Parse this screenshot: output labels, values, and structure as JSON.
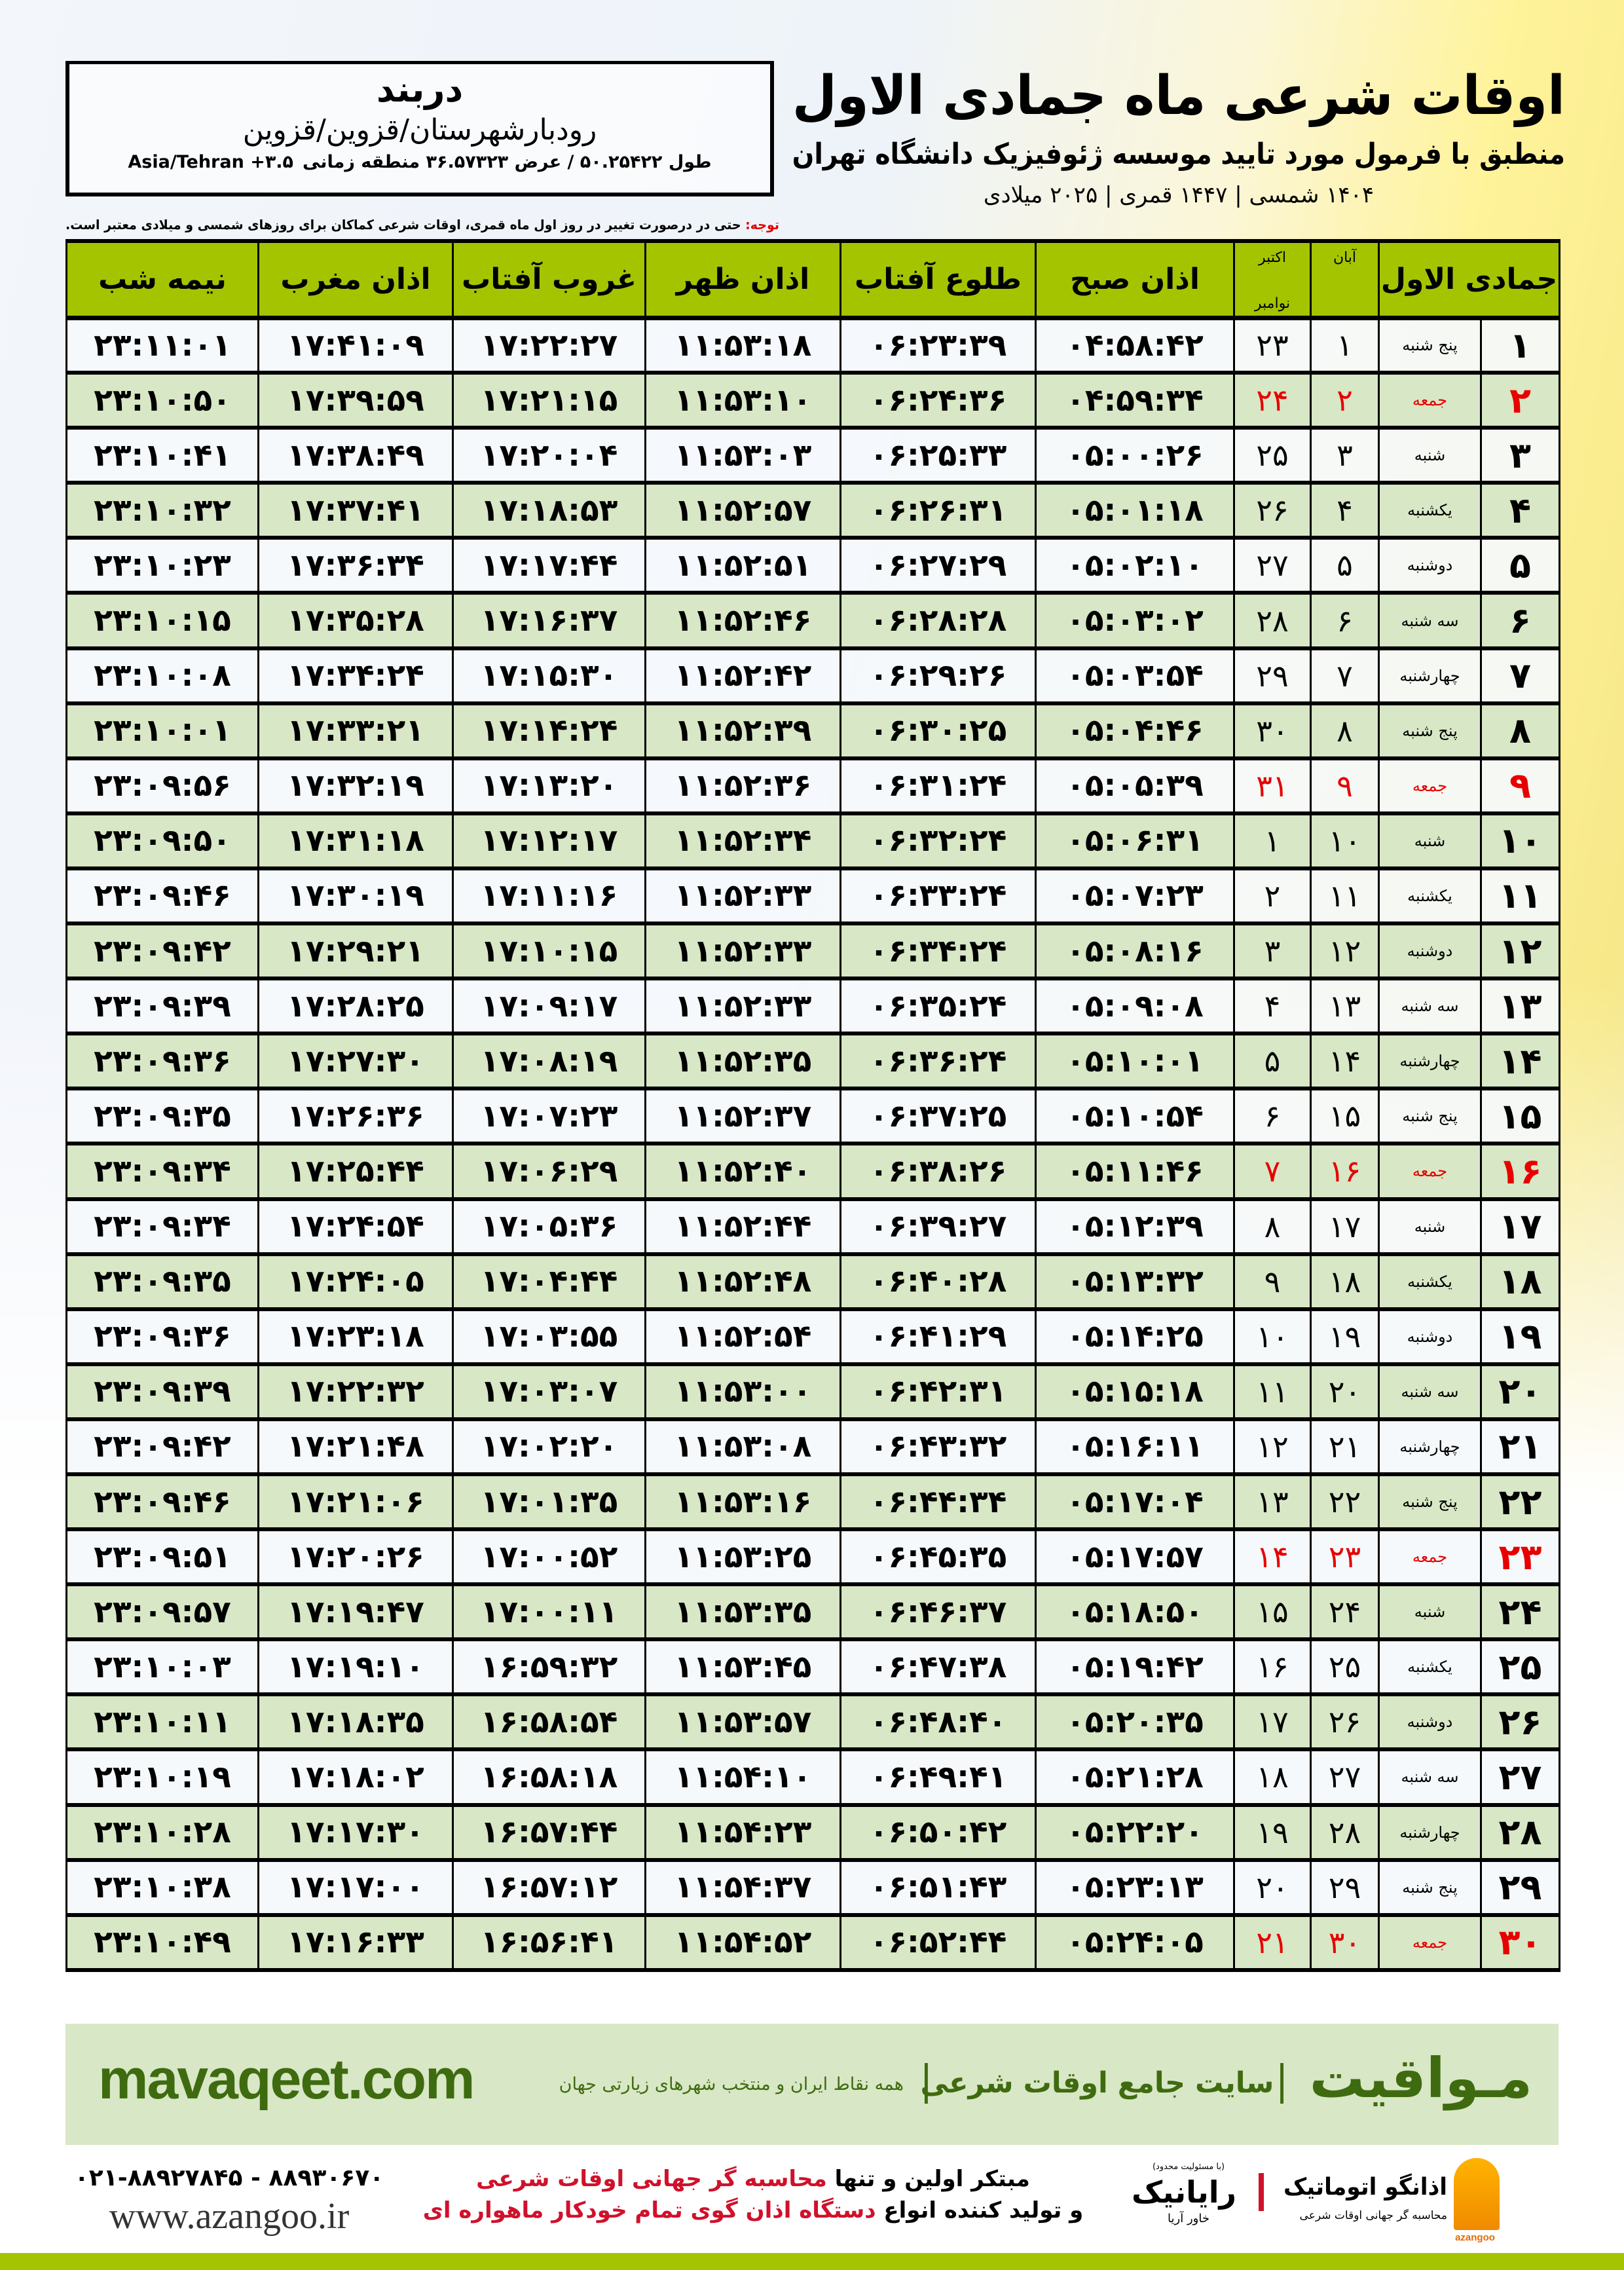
{
  "location": {
    "name": "دربند",
    "region": "رودبارشهرستان/قزوین/قزوین",
    "coords": "طول ۵۰.۲۵۴۲۲ / عرض ۳۶.۵۷۳۲۳ منطقه زمانی",
    "timezone": "Asia/Tehran +۳.۵"
  },
  "header": {
    "title": "اوقات شرعی ماه جمادی الاول",
    "subtitle": "منطبق با فرمول مورد تایید موسسه ژئوفیزیک دانشگاه تهران",
    "dates": "۱۴۰۴ شمسی | ۱۴۴۷ قمری | ۲۰۲۵ میلادی"
  },
  "note": {
    "label": "توجه:",
    "text": " حتی در درصورت تغییر در روز اول ماه قمری، اوقات شرعی کماکان برای روزهای شمسی و میلادی معتبر است."
  },
  "columns": {
    "lunar": "جمادی الاول",
    "aban": "آبان",
    "greg_top": "اکتبر",
    "greg_bottom": "نوامبر",
    "fajr": "اذان صبح",
    "sunrise": "طلوع آفتاب",
    "dhuhr": "اذان ظهر",
    "sunset": "غروب آفتاب",
    "maghrib": "اذان مغرب",
    "midnight": "نیمه شب"
  },
  "colors": {
    "header_bg": "#a5c400",
    "alt_row": "#d8e7c5",
    "friday": "#e60000",
    "brand_green": "#3f6b10"
  },
  "rows": [
    {
      "day": "۱",
      "weekday": "پنج شنبه",
      "aban": "۱",
      "greg": "۲۳",
      "fajr": "۰۴:۵۸:۴۲",
      "sunrise": "۰۶:۲۳:۳۹",
      "dhuhr": "۱۱:۵۳:۱۸",
      "sunset": "۱۷:۲۲:۲۷",
      "maghrib": "۱۷:۴۱:۰۹",
      "midnight": "۲۳:۱۱:۰۱",
      "friday": false
    },
    {
      "day": "۲",
      "weekday": "جمعه",
      "aban": "۲",
      "greg": "۲۴",
      "fajr": "۰۴:۵۹:۳۴",
      "sunrise": "۰۶:۲۴:۳۶",
      "dhuhr": "۱۱:۵۳:۱۰",
      "sunset": "۱۷:۲۱:۱۵",
      "maghrib": "۱۷:۳۹:۵۹",
      "midnight": "۲۳:۱۰:۵۰",
      "friday": true
    },
    {
      "day": "۳",
      "weekday": "شنبه",
      "aban": "۳",
      "greg": "۲۵",
      "fajr": "۰۵:۰۰:۲۶",
      "sunrise": "۰۶:۲۵:۳۳",
      "dhuhr": "۱۱:۵۳:۰۳",
      "sunset": "۱۷:۲۰:۰۴",
      "maghrib": "۱۷:۳۸:۴۹",
      "midnight": "۲۳:۱۰:۴۱",
      "friday": false
    },
    {
      "day": "۴",
      "weekday": "یکشنبه",
      "aban": "۴",
      "greg": "۲۶",
      "fajr": "۰۵:۰۱:۱۸",
      "sunrise": "۰۶:۲۶:۳۱",
      "dhuhr": "۱۱:۵۲:۵۷",
      "sunset": "۱۷:۱۸:۵۳",
      "maghrib": "۱۷:۳۷:۴۱",
      "midnight": "۲۳:۱۰:۳۲",
      "friday": false
    },
    {
      "day": "۵",
      "weekday": "دوشنبه",
      "aban": "۵",
      "greg": "۲۷",
      "fajr": "۰۵:۰۲:۱۰",
      "sunrise": "۰۶:۲۷:۲۹",
      "dhuhr": "۱۱:۵۲:۵۱",
      "sunset": "۱۷:۱۷:۴۴",
      "maghrib": "۱۷:۳۶:۳۴",
      "midnight": "۲۳:۱۰:۲۳",
      "friday": false
    },
    {
      "day": "۶",
      "weekday": "سه شنبه",
      "aban": "۶",
      "greg": "۲۸",
      "fajr": "۰۵:۰۳:۰۲",
      "sunrise": "۰۶:۲۸:۲۸",
      "dhuhr": "۱۱:۵۲:۴۶",
      "sunset": "۱۷:۱۶:۳۷",
      "maghrib": "۱۷:۳۵:۲۸",
      "midnight": "۲۳:۱۰:۱۵",
      "friday": false
    },
    {
      "day": "۷",
      "weekday": "چهارشنبه",
      "aban": "۷",
      "greg": "۲۹",
      "fajr": "۰۵:۰۳:۵۴",
      "sunrise": "۰۶:۲۹:۲۶",
      "dhuhr": "۱۱:۵۲:۴۲",
      "sunset": "۱۷:۱۵:۳۰",
      "maghrib": "۱۷:۳۴:۲۴",
      "midnight": "۲۳:۱۰:۰۸",
      "friday": false
    },
    {
      "day": "۸",
      "weekday": "پنج شنبه",
      "aban": "۸",
      "greg": "۳۰",
      "fajr": "۰۵:۰۴:۴۶",
      "sunrise": "۰۶:۳۰:۲۵",
      "dhuhr": "۱۱:۵۲:۳۹",
      "sunset": "۱۷:۱۴:۲۴",
      "maghrib": "۱۷:۳۳:۲۱",
      "midnight": "۲۳:۱۰:۰۱",
      "friday": false
    },
    {
      "day": "۹",
      "weekday": "جمعه",
      "aban": "۹",
      "greg": "۳۱",
      "fajr": "۰۵:۰۵:۳۹",
      "sunrise": "۰۶:۳۱:۲۴",
      "dhuhr": "۱۱:۵۲:۳۶",
      "sunset": "۱۷:۱۳:۲۰",
      "maghrib": "۱۷:۳۲:۱۹",
      "midnight": "۲۳:۰۹:۵۶",
      "friday": true
    },
    {
      "day": "۱۰",
      "weekday": "شنبه",
      "aban": "۱۰",
      "greg": "۱",
      "fajr": "۰۵:۰۶:۳۱",
      "sunrise": "۰۶:۳۲:۲۴",
      "dhuhr": "۱۱:۵۲:۳۴",
      "sunset": "۱۷:۱۲:۱۷",
      "maghrib": "۱۷:۳۱:۱۸",
      "midnight": "۲۳:۰۹:۵۰",
      "friday": false
    },
    {
      "day": "۱۱",
      "weekday": "یکشنبه",
      "aban": "۱۱",
      "greg": "۲",
      "fajr": "۰۵:۰۷:۲۳",
      "sunrise": "۰۶:۳۳:۲۴",
      "dhuhr": "۱۱:۵۲:۳۳",
      "sunset": "۱۷:۱۱:۱۶",
      "maghrib": "۱۷:۳۰:۱۹",
      "midnight": "۲۳:۰۹:۴۶",
      "friday": false
    },
    {
      "day": "۱۲",
      "weekday": "دوشنبه",
      "aban": "۱۲",
      "greg": "۳",
      "fajr": "۰۵:۰۸:۱۶",
      "sunrise": "۰۶:۳۴:۲۴",
      "dhuhr": "۱۱:۵۲:۳۳",
      "sunset": "۱۷:۱۰:۱۵",
      "maghrib": "۱۷:۲۹:۲۱",
      "midnight": "۲۳:۰۹:۴۲",
      "friday": false
    },
    {
      "day": "۱۳",
      "weekday": "سه شنبه",
      "aban": "۱۳",
      "greg": "۴",
      "fajr": "۰۵:۰۹:۰۸",
      "sunrise": "۰۶:۳۵:۲۴",
      "dhuhr": "۱۱:۵۲:۳۳",
      "sunset": "۱۷:۰۹:۱۷",
      "maghrib": "۱۷:۲۸:۲۵",
      "midnight": "۲۳:۰۹:۳۹",
      "friday": false
    },
    {
      "day": "۱۴",
      "weekday": "چهارشنبه",
      "aban": "۱۴",
      "greg": "۵",
      "fajr": "۰۵:۱۰:۰۱",
      "sunrise": "۰۶:۳۶:۲۴",
      "dhuhr": "۱۱:۵۲:۳۵",
      "sunset": "۱۷:۰۸:۱۹",
      "maghrib": "۱۷:۲۷:۳۰",
      "midnight": "۲۳:۰۹:۳۶",
      "friday": false
    },
    {
      "day": "۱۵",
      "weekday": "پنج شنبه",
      "aban": "۱۵",
      "greg": "۶",
      "fajr": "۰۵:۱۰:۵۴",
      "sunrise": "۰۶:۳۷:۲۵",
      "dhuhr": "۱۱:۵۲:۳۷",
      "sunset": "۱۷:۰۷:۲۳",
      "maghrib": "۱۷:۲۶:۳۶",
      "midnight": "۲۳:۰۹:۳۵",
      "friday": false
    },
    {
      "day": "۱۶",
      "weekday": "جمعه",
      "aban": "۱۶",
      "greg": "۷",
      "fajr": "۰۵:۱۱:۴۶",
      "sunrise": "۰۶:۳۸:۲۶",
      "dhuhr": "۱۱:۵۲:۴۰",
      "sunset": "۱۷:۰۶:۲۹",
      "maghrib": "۱۷:۲۵:۴۴",
      "midnight": "۲۳:۰۹:۳۴",
      "friday": true
    },
    {
      "day": "۱۷",
      "weekday": "شنبه",
      "aban": "۱۷",
      "greg": "۸",
      "fajr": "۰۵:۱۲:۳۹",
      "sunrise": "۰۶:۳۹:۲۷",
      "dhuhr": "۱۱:۵۲:۴۴",
      "sunset": "۱۷:۰۵:۳۶",
      "maghrib": "۱۷:۲۴:۵۴",
      "midnight": "۲۳:۰۹:۳۴",
      "friday": false
    },
    {
      "day": "۱۸",
      "weekday": "یکشنبه",
      "aban": "۱۸",
      "greg": "۹",
      "fajr": "۰۵:۱۳:۳۲",
      "sunrise": "۰۶:۴۰:۲۸",
      "dhuhr": "۱۱:۵۲:۴۸",
      "sunset": "۱۷:۰۴:۴۴",
      "maghrib": "۱۷:۲۴:۰۵",
      "midnight": "۲۳:۰۹:۳۵",
      "friday": false
    },
    {
      "day": "۱۹",
      "weekday": "دوشنبه",
      "aban": "۱۹",
      "greg": "۱۰",
      "fajr": "۰۵:۱۴:۲۵",
      "sunrise": "۰۶:۴۱:۲۹",
      "dhuhr": "۱۱:۵۲:۵۴",
      "sunset": "۱۷:۰۳:۵۵",
      "maghrib": "۱۷:۲۳:۱۸",
      "midnight": "۲۳:۰۹:۳۶",
      "friday": false
    },
    {
      "day": "۲۰",
      "weekday": "سه شنبه",
      "aban": "۲۰",
      "greg": "۱۱",
      "fajr": "۰۵:۱۵:۱۸",
      "sunrise": "۰۶:۴۲:۳۱",
      "dhuhr": "۱۱:۵۳:۰۰",
      "sunset": "۱۷:۰۳:۰۷",
      "maghrib": "۱۷:۲۲:۳۲",
      "midnight": "۲۳:۰۹:۳۹",
      "friday": false
    },
    {
      "day": "۲۱",
      "weekday": "چهارشنبه",
      "aban": "۲۱",
      "greg": "۱۲",
      "fajr": "۰۵:۱۶:۱۱",
      "sunrise": "۰۶:۴۳:۳۲",
      "dhuhr": "۱۱:۵۳:۰۸",
      "sunset": "۱۷:۰۲:۲۰",
      "maghrib": "۱۷:۲۱:۴۸",
      "midnight": "۲۳:۰۹:۴۲",
      "friday": false
    },
    {
      "day": "۲۲",
      "weekday": "پنج شنبه",
      "aban": "۲۲",
      "greg": "۱۳",
      "fajr": "۰۵:۱۷:۰۴",
      "sunrise": "۰۶:۴۴:۳۴",
      "dhuhr": "۱۱:۵۳:۱۶",
      "sunset": "۱۷:۰۱:۳۵",
      "maghrib": "۱۷:۲۱:۰۶",
      "midnight": "۲۳:۰۹:۴۶",
      "friday": false
    },
    {
      "day": "۲۳",
      "weekday": "جمعه",
      "aban": "۲۳",
      "greg": "۱۴",
      "fajr": "۰۵:۱۷:۵۷",
      "sunrise": "۰۶:۴۵:۳۵",
      "dhuhr": "۱۱:۵۳:۲۵",
      "sunset": "۱۷:۰۰:۵۲",
      "maghrib": "۱۷:۲۰:۲۶",
      "midnight": "۲۳:۰۹:۵۱",
      "friday": true
    },
    {
      "day": "۲۴",
      "weekday": "شنبه",
      "aban": "۲۴",
      "greg": "۱۵",
      "fajr": "۰۵:۱۸:۵۰",
      "sunrise": "۰۶:۴۶:۳۷",
      "dhuhr": "۱۱:۵۳:۳۵",
      "sunset": "۱۷:۰۰:۱۱",
      "maghrib": "۱۷:۱۹:۴۷",
      "midnight": "۲۳:۰۹:۵۷",
      "friday": false
    },
    {
      "day": "۲۵",
      "weekday": "یکشنبه",
      "aban": "۲۵",
      "greg": "۱۶",
      "fajr": "۰۵:۱۹:۴۲",
      "sunrise": "۰۶:۴۷:۳۸",
      "dhuhr": "۱۱:۵۳:۴۵",
      "sunset": "۱۶:۵۹:۳۲",
      "maghrib": "۱۷:۱۹:۱۰",
      "midnight": "۲۳:۱۰:۰۳",
      "friday": false
    },
    {
      "day": "۲۶",
      "weekday": "دوشنبه",
      "aban": "۲۶",
      "greg": "۱۷",
      "fajr": "۰۵:۲۰:۳۵",
      "sunrise": "۰۶:۴۸:۴۰",
      "dhuhr": "۱۱:۵۳:۵۷",
      "sunset": "۱۶:۵۸:۵۴",
      "maghrib": "۱۷:۱۸:۳۵",
      "midnight": "۲۳:۱۰:۱۱",
      "friday": false
    },
    {
      "day": "۲۷",
      "weekday": "سه شنبه",
      "aban": "۲۷",
      "greg": "۱۸",
      "fajr": "۰۵:۲۱:۲۸",
      "sunrise": "۰۶:۴۹:۴۱",
      "dhuhr": "۱۱:۵۴:۱۰",
      "sunset": "۱۶:۵۸:۱۸",
      "maghrib": "۱۷:۱۸:۰۲",
      "midnight": "۲۳:۱۰:۱۹",
      "friday": false
    },
    {
      "day": "۲۸",
      "weekday": "چهارشنبه",
      "aban": "۲۸",
      "greg": "۱۹",
      "fajr": "۰۵:۲۲:۲۰",
      "sunrise": "۰۶:۵۰:۴۲",
      "dhuhr": "۱۱:۵۴:۲۳",
      "sunset": "۱۶:۵۷:۴۴",
      "maghrib": "۱۷:۱۷:۳۰",
      "midnight": "۲۳:۱۰:۲۸",
      "friday": false
    },
    {
      "day": "۲۹",
      "weekday": "پنج شنبه",
      "aban": "۲۹",
      "greg": "۲۰",
      "fajr": "۰۵:۲۳:۱۳",
      "sunrise": "۰۶:۵۱:۴۳",
      "dhuhr": "۱۱:۵۴:۳۷",
      "sunset": "۱۶:۵۷:۱۲",
      "maghrib": "۱۷:۱۷:۰۰",
      "midnight": "۲۳:۱۰:۳۸",
      "friday": false
    },
    {
      "day": "۳۰",
      "weekday": "جمعه",
      "aban": "۳۰",
      "greg": "۲۱",
      "fajr": "۰۵:۲۴:۰۵",
      "sunrise": "۰۶:۵۲:۴۴",
      "dhuhr": "۱۱:۵۴:۵۲",
      "sunset": "۱۶:۵۶:۴۱",
      "maghrib": "۱۷:۱۶:۳۳",
      "midnight": "۲۳:۱۰:۴۹",
      "friday": true
    }
  ],
  "banner": {
    "brand": "مـواقیت",
    "site": "سایت جامع اوقات شرعی",
    "tagline": "همه نقاط ایران و منتخب شهرهای زیارتی جهان",
    "url": "mavaqeet.com"
  },
  "footer": {
    "phones": "۰۲۱-۸۸۹۲۷۸۴۵ - ۸۸۹۳۰۶۷۰",
    "website": "www.azangoo.ir",
    "line1_a": "مبتکر اولین و تنها ",
    "line1_b": "محاسبه گر جهانی اوقات شرعی",
    "line2_a": "و تولید کننده انواع ",
    "line2_b": "دستگاه اذان گوی تمام خودکار ماهواره ای",
    "rayanik_small": "(با مسئولیت محدود)",
    "rayanik_name": "رایانیک",
    "rayanik_sub": "خاور آریا",
    "azangoo_name": "اذانگو اتوماتیک",
    "azangoo_sub": "محاسبه گر جهانی اوقات شرعی",
    "azangoo_en": "azangoo"
  }
}
